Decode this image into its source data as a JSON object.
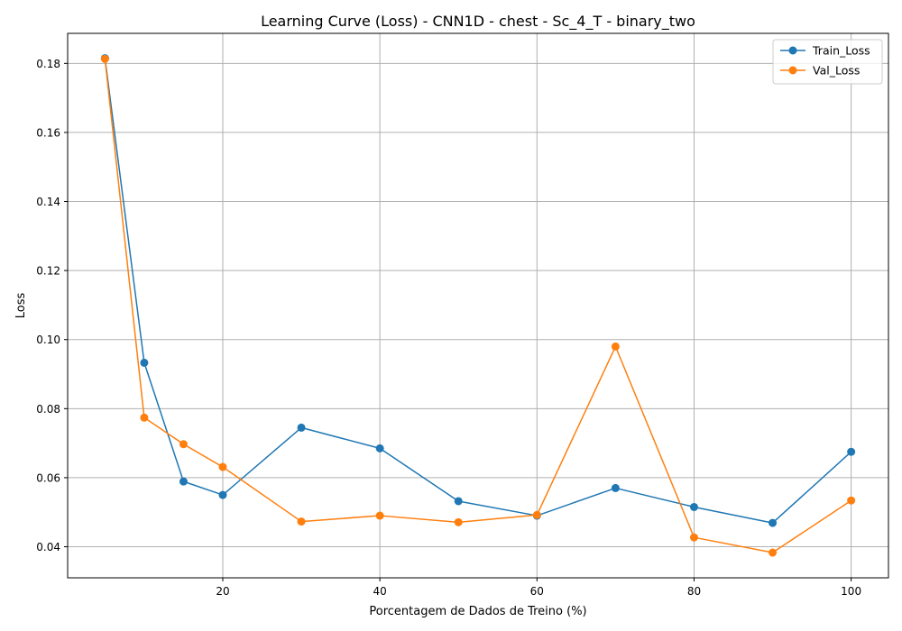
{
  "chart_data": {
    "type": "line",
    "title": "Learning Curve (Loss) - CNN1D - chest - Sc_4_T - binary_two",
    "xlabel": "Porcentagem de Dados de Treino (%)",
    "ylabel": "Loss",
    "x": [
      5,
      10,
      15,
      20,
      30,
      40,
      50,
      60,
      70,
      80,
      90,
      100
    ],
    "xlim": [
      0.25,
      104.75
    ],
    "ylim": [
      0.031,
      0.1887
    ],
    "xticks": [
      20,
      40,
      60,
      80,
      100
    ],
    "yticks": [
      0.04,
      0.06,
      0.08,
      0.1,
      0.12,
      0.14,
      0.16,
      0.18
    ],
    "xtick_labels": [
      "20",
      "40",
      "60",
      "80",
      "100"
    ],
    "ytick_labels": [
      "0.04",
      "0.06",
      "0.08",
      "0.10",
      "0.12",
      "0.14",
      "0.16",
      "0.18"
    ],
    "grid": true,
    "legend_position": "top-right",
    "series": [
      {
        "name": "Train_Loss",
        "color": "#1f77b4",
        "values": [
          0.1815,
          0.0933,
          0.0589,
          0.055,
          0.0745,
          0.0685,
          0.0532,
          0.049,
          0.057,
          0.0515,
          0.0469,
          0.0675
        ]
      },
      {
        "name": "Val_Loss",
        "color": "#ff7f0e",
        "values": [
          0.1813,
          0.0774,
          0.0697,
          0.0631,
          0.0473,
          0.049,
          0.0471,
          0.0492,
          0.098,
          0.0427,
          0.0383,
          0.0534
        ]
      }
    ]
  }
}
